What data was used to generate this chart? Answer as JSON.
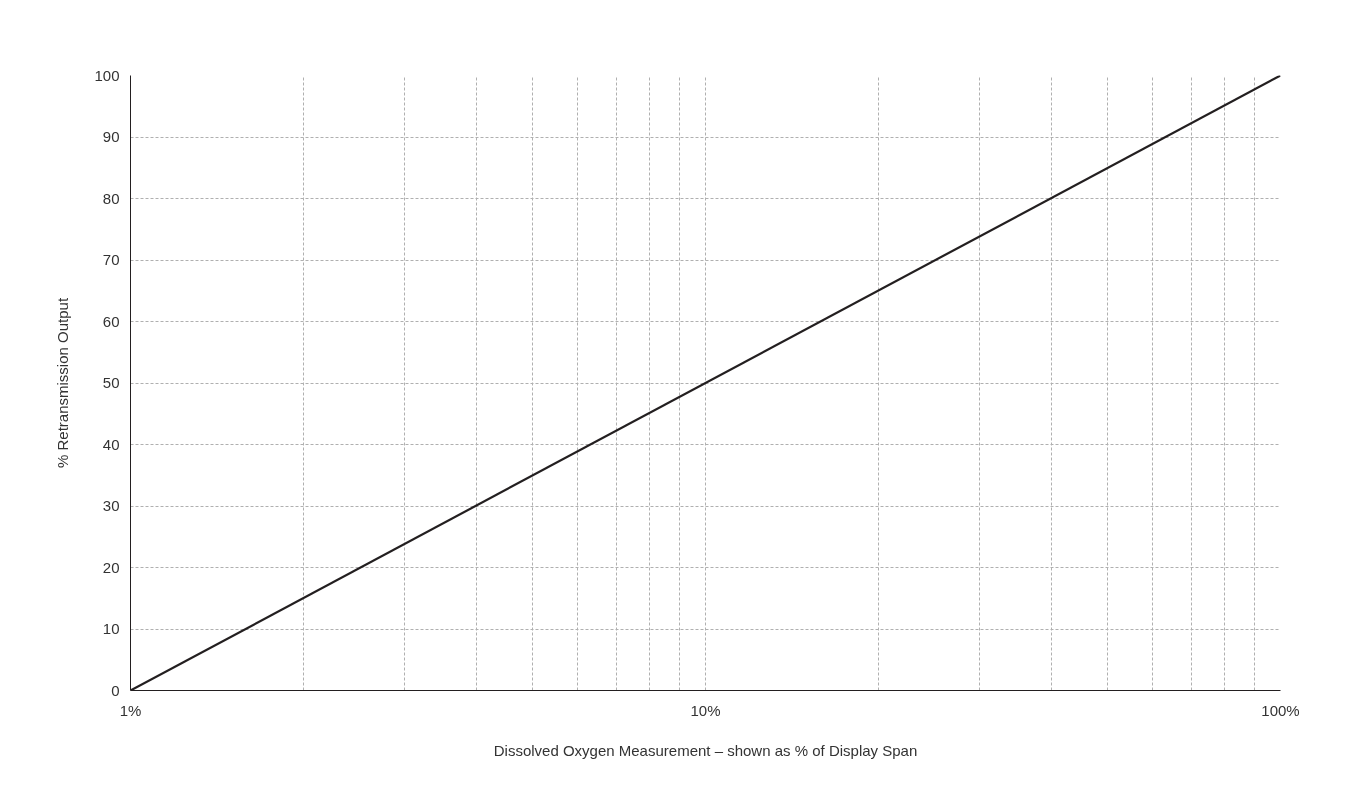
{
  "chart_data": {
    "type": "line",
    "xlabel": "Dissolved Oxygen Measurement – shown as % of Display Span",
    "ylabel": "% Retransmission Output",
    "x": [
      1,
      100
    ],
    "series": [
      {
        "color": "#231f20",
        "values": [
          0,
          100
        ]
      }
    ],
    "log": "x",
    "xlim": [
      1,
      100
    ],
    "ylim": [
      0,
      100
    ],
    "xticks": [
      {
        "value": 1,
        "label": "1%"
      },
      {
        "value": 2,
        "label": null
      },
      {
        "value": 3,
        "label": null
      },
      {
        "value": 4,
        "label": null
      },
      {
        "value": 5,
        "label": null
      },
      {
        "value": 6,
        "label": null
      },
      {
        "value": 7,
        "label": null
      },
      {
        "value": 8,
        "label": null
      },
      {
        "value": 9,
        "label": null
      },
      {
        "value": 10,
        "label": "10%"
      },
      {
        "value": 20,
        "label": null
      },
      {
        "value": 30,
        "label": null
      },
      {
        "value": 40,
        "label": null
      },
      {
        "value": 50,
        "label": null
      },
      {
        "value": 60,
        "label": null
      },
      {
        "value": 70,
        "label": null
      },
      {
        "value": 80,
        "label": null
      },
      {
        "value": 90,
        "label": null
      },
      {
        "value": 100,
        "label": "100%"
      }
    ],
    "yticks": [
      0,
      10,
      20,
      30,
      40,
      50,
      60,
      70,
      80,
      90,
      100
    ],
    "grid": true,
    "line_style": "solid",
    "marker": "none"
  }
}
